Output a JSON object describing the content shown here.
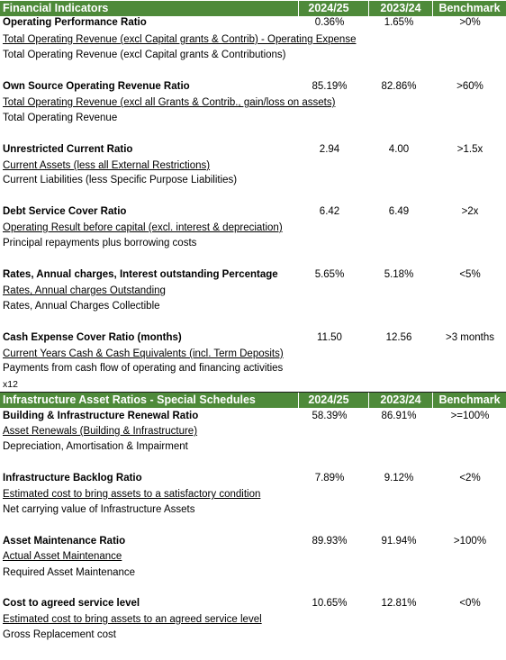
{
  "sections": [
    {
      "title": "Financial Indicators",
      "col1": "2024/25",
      "col2": "2023/24",
      "col3": "Benchmark",
      "rows": [
        {
          "name": "Operating Performance Ratio",
          "numerator": "Total Operating Revenue (excl Capital grants & Contrib) - Operating Expense",
          "denominator": "Total Operating Revenue (excl Capital grants & Contributions)",
          "v1": "0.36%",
          "v2": "1.65%",
          "bench": ">0%"
        },
        {
          "name": "Own Source Operating Revenue Ratio",
          "numerator": "Total Operating Revenue (excl all Grants & Contrib., gain/loss on assets)",
          "denominator": "Total Operating Revenue",
          "v1": "85.19%",
          "v2": "82.86%",
          "bench": ">60%"
        },
        {
          "name": "Unrestricted Current Ratio",
          "numerator": "Current Assets (less all External Restrictions)",
          "denominator": "Current Liabilities (less Specific Purpose Liabilities)",
          "v1": "2.94",
          "v2": "4.00",
          "bench": ">1.5x"
        },
        {
          "name": "Debt Service Cover Ratio",
          "numerator": "Operating Result before capital (excl. interest & depreciation)",
          "denominator": "Principal repayments plus borrowing costs",
          "v1": "6.42",
          "v2": "6.49",
          "bench": ">2x"
        },
        {
          "name": "Rates, Annual charges, Interest outstanding Percentage",
          "numerator": "Rates, Annual charges Outstanding",
          "denominator": "Rates, Annual Charges Collectible",
          "v1": "5.65%",
          "v2": "5.18%",
          "bench": "<5%"
        },
        {
          "name": "Cash Expense Cover Ratio (months)",
          "numerator": "Current Years Cash & Cash Equivalents (incl. Term Deposits)",
          "denominator": "Payments from cash flow of operating and financing activities",
          "extra": "x12",
          "v1": "11.50",
          "v2": "12.56",
          "bench": ">3 months"
        }
      ]
    },
    {
      "title": "Infrastructure Asset Ratios - Special Schedules",
      "col1": "2024/25",
      "col2": "2023/24",
      "col3": "Benchmark",
      "rows": [
        {
          "name": "Building & Infrastructure Renewal Ratio",
          "numerator": "Asset Renewals (Building & Infrastructure)",
          "denominator": "Depreciation, Amortisation & Impairment",
          "v1": "58.39%",
          "v2": "86.91%",
          "bench": ">=100%"
        },
        {
          "name": "Infrastructure Backlog Ratio",
          "numerator": "Estimated cost to bring assets to a satisfactory condition",
          "denominator": "Net carrying value of Infrastructure Assets",
          "v1": "7.89%",
          "v2": "9.12%",
          "bench": "<2%"
        },
        {
          "name": "Asset Maintenance Ratio",
          "numerator": "Actual Asset Maintenance",
          "denominator": "Required Asset Maintenance",
          "v1": "89.93%",
          "v2": "91.94%",
          "bench": ">100%"
        },
        {
          "name": "Cost to agreed service level",
          "numerator": "Estimated cost to bring assets to an agreed service level",
          "denominator": "Gross Replacement cost",
          "v1": "10.65%",
          "v2": "12.81%",
          "bench": "<0%"
        }
      ]
    }
  ]
}
